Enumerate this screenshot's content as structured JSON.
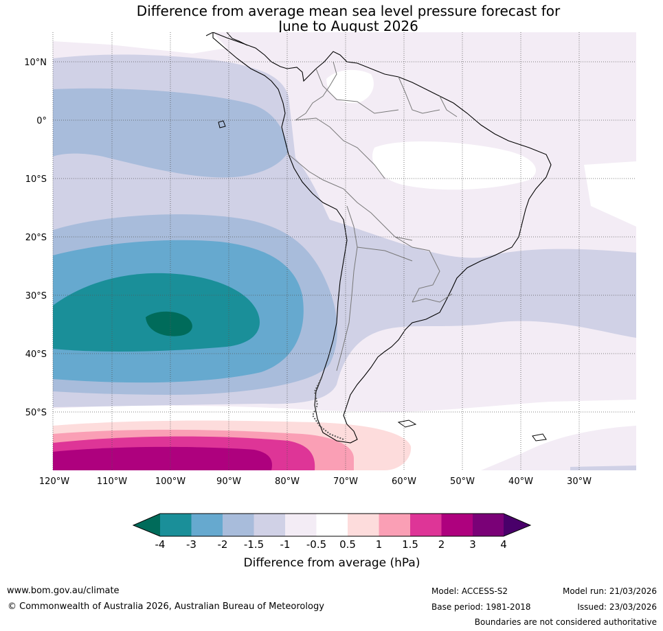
{
  "title": {
    "line1": "Difference from average mean sea level pressure forecast for",
    "line2": "June to August 2026"
  },
  "map": {
    "lat_labels": [
      "10°N",
      "0°",
      "10°S",
      "20°S",
      "30°S",
      "40°S",
      "50°S"
    ],
    "lon_labels": [
      "120°W",
      "110°W",
      "100°W",
      "90°W",
      "80°W",
      "70°W",
      "60°W",
      "50°W",
      "40°W",
      "30°W"
    ]
  },
  "colorbar": {
    "ticks": [
      "-4",
      "-3",
      "-2",
      "-1.5",
      "-1",
      "-0.5",
      "0.5",
      "1",
      "1.5",
      "2",
      "3",
      "4"
    ],
    "colors": [
      "#006b5a",
      "#1a8f99",
      "#66a9cf",
      "#a8bcdb",
      "#d0d1e6",
      "#f3ecf5",
      "#ffffff",
      "#fddcdc",
      "#fa9fb5",
      "#de3597",
      "#ae017e",
      "#7a0177",
      "#49006a"
    ],
    "label": "Difference from average (hPa)"
  },
  "footer": {
    "website": "www.bom.gov.au/climate",
    "copyright": "© Commonwealth of Australia 2026, Australian Bureau of Meteorology",
    "model": "Model: ACCESS-S2",
    "base_period": "Base period: 1981-2018",
    "model_run": "Model run: 21/03/2026",
    "issued": "Issued: 23/03/2026",
    "disclaimer": "Boundaries are not considered authoritative"
  }
}
